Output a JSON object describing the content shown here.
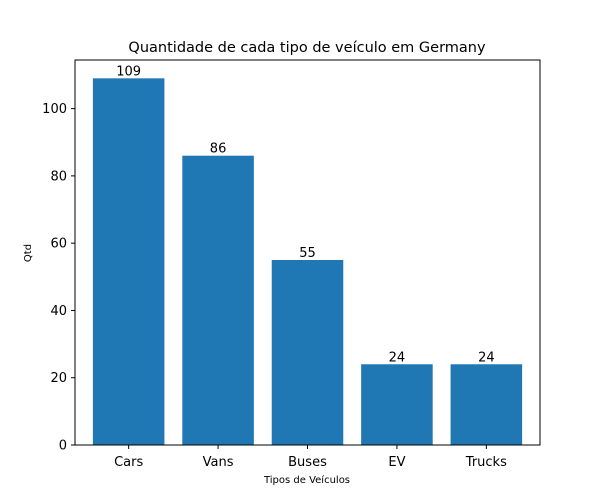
{
  "chart_data": {
    "type": "bar",
    "title": "Quantidade de cada tipo de veículo em Germany",
    "xlabel": "Tipos de Veículos",
    "ylabel": "Qtd",
    "categories": [
      "Cars",
      "Vans",
      "Buses",
      "EV",
      "Trucks"
    ],
    "values": [
      109,
      86,
      55,
      24,
      24
    ],
    "data_labels": [
      "109",
      "86",
      "55",
      "24",
      "24"
    ],
    "yticks": [
      0,
      20,
      40,
      60,
      80,
      100
    ],
    "ylim": [
      0,
      114.45
    ],
    "grid": false,
    "legend": "none",
    "bar_color": "#1f77b4"
  }
}
